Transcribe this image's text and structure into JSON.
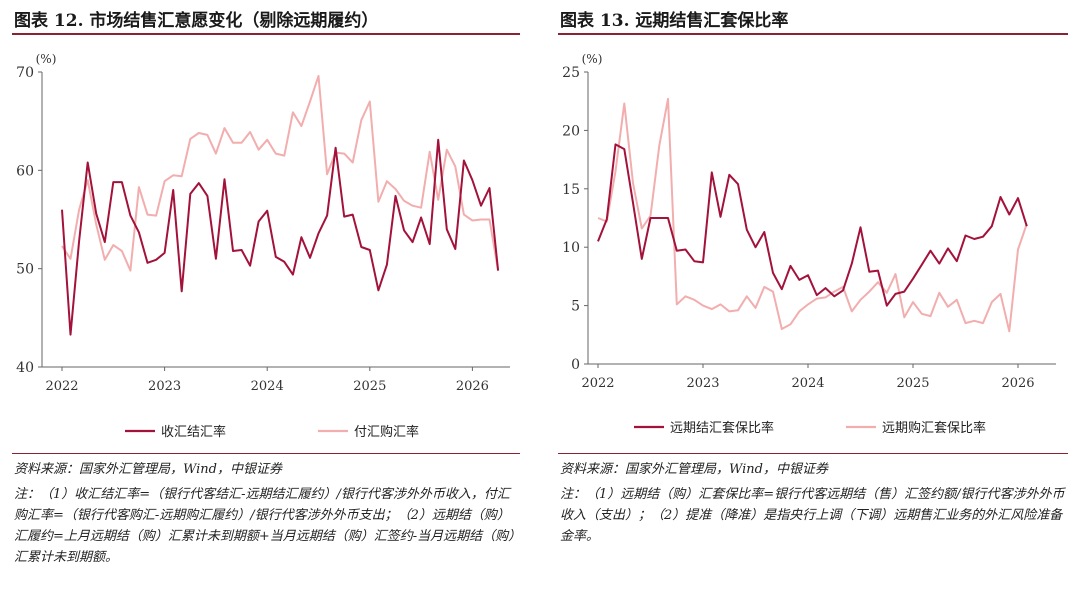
{
  "left": {
    "title": "图表 12. 市场结售汇意愿变化（剔除远期履约）",
    "source": "资料来源：国家外汇管理局，Wind，中银证券",
    "note": "注：（1）收汇结汇率=（银行代客结汇-远期结汇履约）/银行代客涉外外币收入，付汇购汇率=（银行代客购汇-远期购汇履约）/银行代客涉外外币支出；（2）远期结（购）汇履约=上月远期结（购）汇累计未到期额+当月远期结（购）汇签约-当月远期结（购）汇累计未到期额。"
  },
  "right": {
    "title": "图表 13. 远期结售汇套保比率",
    "source": "资料来源：国家外汇管理局，Wind，中银证券",
    "note": "注：（1）远期结（购）汇套保比率=银行代客远期结（售）汇签约额/银行代客涉外外币收入（支出）；（2）提准（降准）是指央行上调（下调）远期售汇业务的外汇风险准备金率。"
  },
  "chart_data": [
    {
      "type": "line",
      "title": "",
      "ylabel": "(%)",
      "ylim": [
        40,
        70
      ],
      "yticks": [
        40,
        50,
        60,
        70
      ],
      "xticks": [
        "2022",
        "2023",
        "2024",
        "2025",
        "2026"
      ],
      "x_start": "2022-01",
      "legend_position": "bottom",
      "grid": false,
      "series": [
        {
          "name": "收汇结汇率",
          "color": "#a3123a",
          "values": [
            56.0,
            43.3,
            52.8,
            60.8,
            55.6,
            52.7,
            58.8,
            58.8,
            55.4,
            53.7,
            50.6,
            50.9,
            51.6,
            58.0,
            47.7,
            57.6,
            58.7,
            57.4,
            51.0,
            59.1,
            51.8,
            51.9,
            50.3,
            54.8,
            55.9,
            51.2,
            50.7,
            49.4,
            53.2,
            51.1,
            53.6,
            55.4,
            62.3,
            55.3,
            55.5,
            52.2,
            51.9,
            47.8,
            50.4,
            57.4,
            53.9,
            52.7,
            55.2,
            52.5,
            63.1,
            54.0,
            52.0,
            61.0,
            59.0,
            56.4,
            58.2,
            49.8
          ]
        },
        {
          "name": "付汇购汇率",
          "color": "#f2aeae",
          "values": [
            52.3,
            51.0,
            56.0,
            59.0,
            54.5,
            50.9,
            52.4,
            51.8,
            49.8,
            58.3,
            55.5,
            55.4,
            58.9,
            59.5,
            59.4,
            63.2,
            63.8,
            63.6,
            61.7,
            64.3,
            62.8,
            62.8,
            63.9,
            62.1,
            63.1,
            61.7,
            61.5,
            65.9,
            64.5,
            67.0,
            69.6,
            59.6,
            61.8,
            61.7,
            60.8,
            65.1,
            67.0,
            56.8,
            58.9,
            58.1,
            56.9,
            56.4,
            56.2,
            61.9,
            57.0,
            62.1,
            60.4,
            55.5,
            54.9,
            55.0,
            55.0,
            49.8
          ]
        }
      ]
    },
    {
      "type": "line",
      "title": "",
      "ylabel": "(%)",
      "ylim": [
        0,
        25
      ],
      "yticks": [
        0,
        5,
        10,
        15,
        20,
        25
      ],
      "xticks": [
        "2022",
        "2023",
        "2024",
        "2025",
        "2026"
      ],
      "x_start": "2022-01",
      "legend_position": "bottom",
      "grid": false,
      "series": [
        {
          "name": "远期结汇套保比率",
          "color": "#a3123a",
          "values": [
            10.5,
            12.4,
            18.8,
            18.4,
            13.8,
            9.0,
            12.5,
            12.5,
            12.5,
            9.7,
            9.8,
            8.8,
            8.7,
            16.4,
            12.6,
            16.2,
            15.4,
            11.5,
            10.0,
            11.3,
            7.8,
            6.4,
            8.4,
            7.2,
            7.6,
            5.9,
            6.5,
            5.8,
            6.3,
            8.6,
            11.7,
            7.9,
            8.0,
            5.0,
            6.0,
            6.2,
            7.3,
            8.5,
            9.7,
            8.6,
            9.9,
            8.8,
            11.0,
            10.7,
            10.9,
            11.8,
            14.3,
            12.8,
            14.2,
            11.8
          ]
        },
        {
          "name": "远期购汇套保比率",
          "color": "#f2aeae",
          "values": [
            12.5,
            12.2,
            16.5,
            22.3,
            15.5,
            11.6,
            12.7,
            18.7,
            22.7,
            5.1,
            5.8,
            5.5,
            5.0,
            4.7,
            5.1,
            4.5,
            4.6,
            5.8,
            4.8,
            6.6,
            6.2,
            3.0,
            3.4,
            4.5,
            5.1,
            5.6,
            5.7,
            6.2,
            6.6,
            4.5,
            5.5,
            6.2,
            7.0,
            6.1,
            7.7,
            4.0,
            5.3,
            4.3,
            4.1,
            6.1,
            4.9,
            5.5,
            3.5,
            3.7,
            3.5,
            5.3,
            6.0,
            2.8,
            9.8,
            12.0
          ]
        }
      ]
    }
  ]
}
